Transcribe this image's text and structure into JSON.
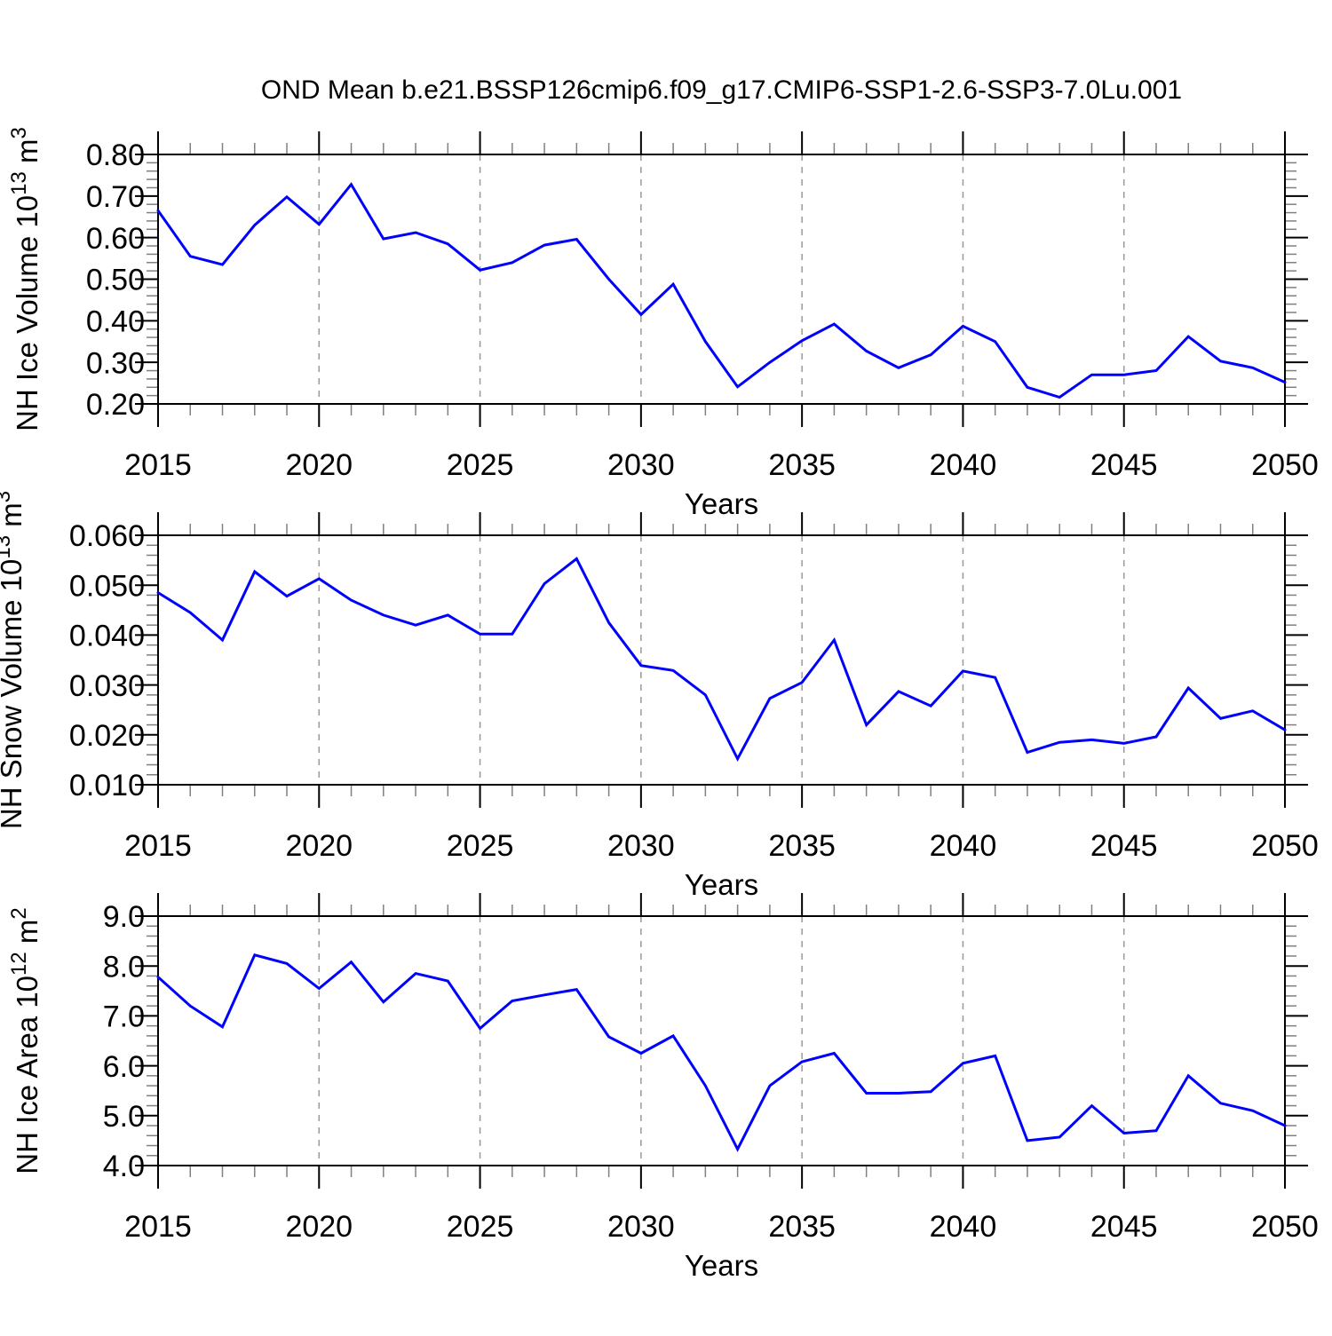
{
  "title": "OND Mean b.e21.BSSP126cmip6.f09_g17.CMIP6-SSP1-2.6-SSP3-7.0Lu.001",
  "line_color": "#0000ff",
  "background": "#ffffff",
  "grid_color": "#999999",
  "minor_tick_color": "#808080",
  "axis_color": "#000000",
  "x_axis": {
    "label": "Years",
    "min": 2015,
    "max": 2050,
    "major_ticks": [
      2015,
      2020,
      2025,
      2030,
      2035,
      2040,
      2045,
      2050
    ],
    "minor_step": 1,
    "grid_years": [
      2020,
      2025,
      2030,
      2035,
      2040,
      2045
    ],
    "grid_style": "dashed"
  },
  "chart_data": [
    {
      "type": "line",
      "name": "nh-ice-volume",
      "title": "",
      "xlabel": "Years",
      "ylabel": "NH Ice Volume 10^13 m^3",
      "ylim": [
        0.2,
        0.8
      ],
      "ytick_step": 0.1,
      "y_minor_step": 0.02,
      "ytick_decimals": 2,
      "legend": "none",
      "grid": "vertical-dashed",
      "x": [
        2015,
        2016,
        2017,
        2018,
        2019,
        2020,
        2021,
        2022,
        2023,
        2024,
        2025,
        2026,
        2027,
        2028,
        2029,
        2030,
        2031,
        2032,
        2033,
        2034,
        2035,
        2036,
        2037,
        2038,
        2039,
        2040,
        2041,
        2042,
        2043,
        2044,
        2045,
        2046,
        2047,
        2048,
        2049,
        2050
      ],
      "values": [
        0.665,
        0.555,
        0.535,
        0.63,
        0.698,
        0.632,
        0.728,
        0.597,
        0.612,
        0.585,
        0.522,
        0.54,
        0.582,
        0.596,
        0.5,
        0.415,
        0.488,
        0.35,
        0.241,
        0.3,
        0.352,
        0.392,
        0.327,
        0.287,
        0.318,
        0.387,
        0.35,
        0.24,
        0.216,
        0.27,
        0.27,
        0.28,
        0.362,
        0.303,
        0.287,
        0.252
      ]
    },
    {
      "type": "line",
      "name": "nh-snow-volume",
      "title": "",
      "xlabel": "Years",
      "ylabel": "NH Snow Volume 10^13 m^3",
      "ylim": [
        0.01,
        0.06
      ],
      "ytick_step": 0.01,
      "y_minor_step": 0.002,
      "ytick_decimals": 3,
      "legend": "none",
      "grid": "vertical-dashed",
      "x": [
        2015,
        2016,
        2017,
        2018,
        2019,
        2020,
        2021,
        2022,
        2023,
        2024,
        2025,
        2026,
        2027,
        2028,
        2029,
        2030,
        2031,
        2032,
        2033,
        2034,
        2035,
        2036,
        2037,
        2038,
        2039,
        2040,
        2041,
        2042,
        2043,
        2044,
        2045,
        2046,
        2047,
        2048,
        2049,
        2050
      ],
      "values": [
        0.0485,
        0.0445,
        0.039,
        0.0527,
        0.0478,
        0.0513,
        0.047,
        0.044,
        0.042,
        0.044,
        0.0402,
        0.0402,
        0.0503,
        0.0553,
        0.0425,
        0.0339,
        0.0329,
        0.028,
        0.0152,
        0.0273,
        0.0305,
        0.039,
        0.022,
        0.0287,
        0.0258,
        0.0328,
        0.0315,
        0.0165,
        0.0185,
        0.019,
        0.0183,
        0.0196,
        0.0294,
        0.0233,
        0.0248,
        0.021
      ]
    },
    {
      "type": "line",
      "name": "nh-ice-area",
      "title": "",
      "xlabel": "Years",
      "ylabel": "NH Ice Area 10^12 m^2",
      "ylim": [
        4.0,
        9.0
      ],
      "ytick_step": 1.0,
      "y_minor_step": 0.2,
      "ytick_decimals": 1,
      "legend": "none",
      "grid": "vertical-dashed",
      "x": [
        2015,
        2016,
        2017,
        2018,
        2019,
        2020,
        2021,
        2022,
        2023,
        2024,
        2025,
        2026,
        2027,
        2028,
        2029,
        2030,
        2031,
        2032,
        2033,
        2034,
        2035,
        2036,
        2037,
        2038,
        2039,
        2040,
        2041,
        2042,
        2043,
        2044,
        2045,
        2046,
        2047,
        2048,
        2049,
        2050
      ],
      "values": [
        7.78,
        7.2,
        6.78,
        8.22,
        8.05,
        7.55,
        8.08,
        7.28,
        7.85,
        7.7,
        6.75,
        7.3,
        7.42,
        7.53,
        6.58,
        6.25,
        6.6,
        5.6,
        4.33,
        5.6,
        6.08,
        6.25,
        5.45,
        5.45,
        5.48,
        6.05,
        6.2,
        4.5,
        4.57,
        5.2,
        4.65,
        4.7,
        5.8,
        5.25,
        5.1,
        4.8
      ]
    }
  ]
}
